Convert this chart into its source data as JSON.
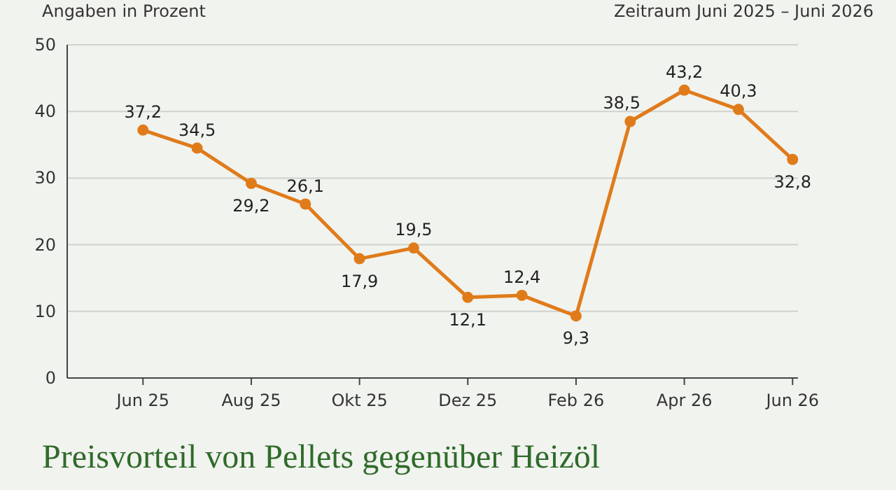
{
  "chart_data": {
    "type": "line",
    "title": "Preisvorteil von Pellets gegenüber Heizöl",
    "subtitle": "Zeitraum Juni 2025 – Juni 2026",
    "ylabel": "Angaben in Prozent",
    "categories": [
      "Jun 25",
      null,
      "Aug 25",
      null,
      "Okt 25",
      null,
      "Dez 25",
      null,
      "Feb 26",
      null,
      "Apr 26",
      null,
      "Jun 26"
    ],
    "series": [
      {
        "color": "#e07b1a",
        "values": [
          37.2,
          34.5,
          29.2,
          26.1,
          17.9,
          19.5,
          12.1,
          12.4,
          9.3,
          38.5,
          43.2,
          40.3,
          32.8
        ],
        "value_labels": [
          "37,2",
          "34,5",
          "29,2",
          "26,1",
          "17,9",
          "19,5",
          "12,1",
          "12,4",
          "9,3",
          "38,5",
          "43,2",
          "40,3",
          "32,8"
        ]
      }
    ],
    "ylim": [
      0,
      50
    ],
    "yticks": [
      0,
      10,
      20,
      30,
      40,
      50
    ],
    "grid": "y",
    "marker": "circle",
    "line_style": "solid"
  }
}
